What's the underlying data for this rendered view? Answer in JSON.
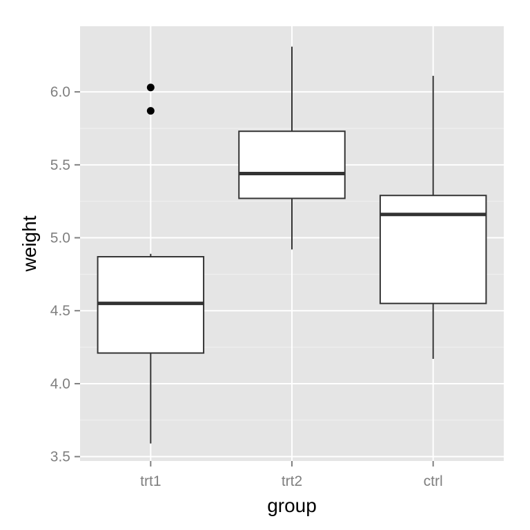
{
  "chart_data": {
    "type": "boxplot",
    "xlabel": "group",
    "ylabel": "weight",
    "categories": [
      "trt1",
      "trt2",
      "ctrl"
    ],
    "ylim": [
      3.47,
      6.45
    ],
    "y_ticks": [
      3.5,
      4.0,
      4.5,
      5.0,
      5.5,
      6.0
    ],
    "y_tick_labels": [
      "3.5",
      "4.0",
      "4.5",
      "5.0",
      "5.5",
      "6.0"
    ],
    "grid": true,
    "legend": "none",
    "boxes": [
      {
        "category": "trt1",
        "whisker_low": 3.59,
        "q1": 4.21,
        "median": 4.55,
        "q3": 4.87,
        "whisker_high": 4.89,
        "outliers": [
          5.87,
          6.03
        ]
      },
      {
        "category": "trt2",
        "whisker_low": 4.92,
        "q1": 5.27,
        "median": 5.44,
        "q3": 5.73,
        "whisker_high": 6.31,
        "outliers": []
      },
      {
        "category": "ctrl",
        "whisker_low": 4.17,
        "q1": 4.55,
        "median": 5.16,
        "q3": 5.29,
        "whisker_high": 6.11,
        "outliers": []
      }
    ],
    "colors": {
      "panel_bg": "#e5e5e5",
      "grid": "#ffffff",
      "box_fill": "#ffffff",
      "box_line": "#333333",
      "tick_text": "#7f7f7f",
      "tick_mark": "#7f7f7f"
    }
  }
}
